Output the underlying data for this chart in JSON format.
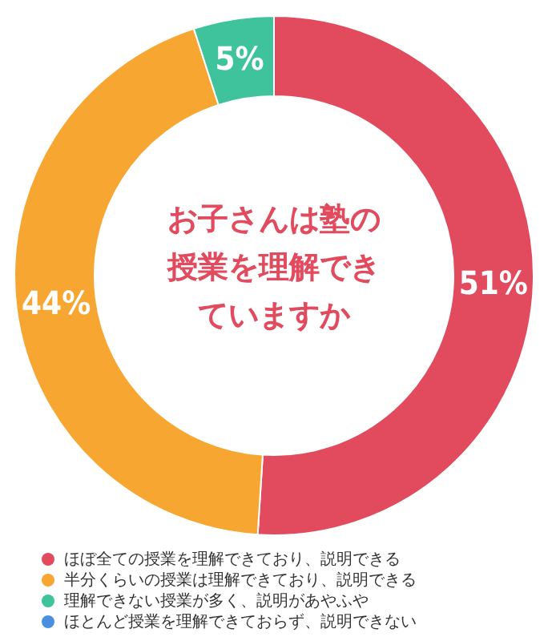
{
  "chart_data": {
    "type": "donut",
    "title": "お子さんは塾の授業を理解できていますか",
    "categories": [
      "ほぼ全ての授業を理解できており、説明できる",
      "半分くらいの授業は理解できており、説明できる",
      "理解できない授業が多く、説明があやふや",
      "ほとんど授業を理解できておらず、説明できない"
    ],
    "values": [
      51,
      44,
      5,
      0
    ],
    "colors": [
      "#e24a5e",
      "#f7a631",
      "#3ec39c",
      "#4a8fe2"
    ],
    "value_labels": [
      "51%",
      "44%",
      "5%",
      null
    ],
    "legend": "bottom"
  }
}
